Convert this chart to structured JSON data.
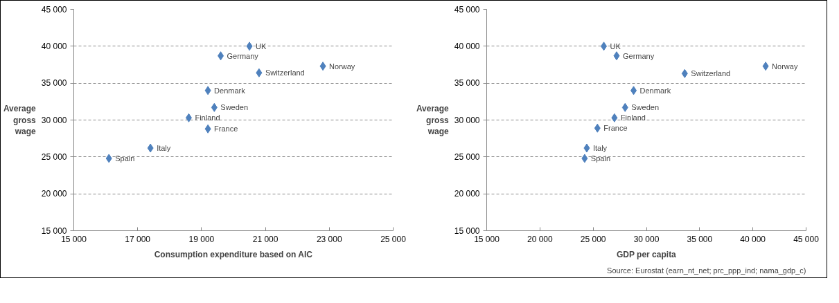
{
  "chart_data": [
    {
      "type": "scatter",
      "xlabel": "Consumption expenditure based on AIC",
      "ylabel": "Average gross wage",
      "marker": "diamond",
      "grid": "y",
      "xlim": [
        15000,
        25000
      ],
      "xticks": [
        {
          "value": 15000,
          "label": "15 000"
        },
        {
          "value": 17000,
          "label": "17 000"
        },
        {
          "value": 19000,
          "label": "19 000"
        },
        {
          "value": 21000,
          "label": "21 000"
        },
        {
          "value": 23000,
          "label": "23 000"
        },
        {
          "value": 25000,
          "label": "25 000"
        }
      ],
      "ylim": [
        15000,
        45000
      ],
      "yticks": [
        {
          "value": 15000,
          "label": "15 000"
        },
        {
          "value": 20000,
          "label": "20 000"
        },
        {
          "value": 25000,
          "label": "25 000"
        },
        {
          "value": 30000,
          "label": "30 000"
        },
        {
          "value": 35000,
          "label": "35 000"
        },
        {
          "value": 40000,
          "label": "40 000"
        },
        {
          "value": 45000,
          "label": "45 000"
        }
      ],
      "series": [
        {
          "color": "#4f81bd",
          "x": [
            16100,
            17400,
            18600,
            19200,
            19200,
            19400,
            19600,
            20500,
            20800,
            22800
          ],
          "values": [
            24800,
            26200,
            30300,
            28800,
            34000,
            31700,
            38700,
            40000,
            36400,
            37300
          ]
        }
      ],
      "annotations": [
        {
          "text": "Spain",
          "x": 16100,
          "y": 24800
        },
        {
          "text": "Italy",
          "x": 17400,
          "y": 26200
        },
        {
          "text": "Finland",
          "x": 18600,
          "y": 30300
        },
        {
          "text": "France",
          "x": 19200,
          "y": 28800
        },
        {
          "text": "Denmark",
          "x": 19200,
          "y": 34000
        },
        {
          "text": "Sweden",
          "x": 19400,
          "y": 31700
        },
        {
          "text": "Germany",
          "x": 19600,
          "y": 38700
        },
        {
          "text": "UK",
          "x": 20500,
          "y": 40000
        },
        {
          "text": "Switzerland",
          "x": 20800,
          "y": 36400
        },
        {
          "text": "Norway",
          "x": 22800,
          "y": 37300
        }
      ]
    },
    {
      "type": "scatter",
      "xlabel": "GDP per capita",
      "ylabel": "Average gross wage",
      "marker": "diamond",
      "grid": "y",
      "xlim": [
        15000,
        45000
      ],
      "xticks": [
        {
          "value": 15000,
          "label": "15 000"
        },
        {
          "value": 20000,
          "label": "20 000"
        },
        {
          "value": 25000,
          "label": "25 000"
        },
        {
          "value": 30000,
          "label": "30 000"
        },
        {
          "value": 35000,
          "label": "35 000"
        },
        {
          "value": 40000,
          "label": "40 000"
        },
        {
          "value": 45000,
          "label": "45 000"
        }
      ],
      "ylim": [
        15000,
        45000
      ],
      "yticks": [
        {
          "value": 15000,
          "label": "15 000"
        },
        {
          "value": 20000,
          "label": "20 000"
        },
        {
          "value": 25000,
          "label": "25 000"
        },
        {
          "value": 30000,
          "label": "30 000"
        },
        {
          "value": 35000,
          "label": "35 000"
        },
        {
          "value": 40000,
          "label": "40 000"
        },
        {
          "value": 45000,
          "label": "45 000"
        }
      ],
      "series": [
        {
          "color": "#4f81bd",
          "x": [
            24200,
            24400,
            27000,
            25400,
            28800,
            28000,
            27200,
            26000,
            33600,
            41200
          ],
          "values": [
            24800,
            26200,
            30300,
            28900,
            34000,
            31700,
            38700,
            40000,
            36300,
            37300
          ]
        }
      ],
      "annotations": [
        {
          "text": "Spain",
          "x": 24200,
          "y": 24800
        },
        {
          "text": "Italy",
          "x": 24400,
          "y": 26200
        },
        {
          "text": "Finland",
          "x": 27000,
          "y": 30300
        },
        {
          "text": "France",
          "x": 25400,
          "y": 28900
        },
        {
          "text": "Denmark",
          "x": 28800,
          "y": 34000
        },
        {
          "text": "Sweden",
          "x": 28000,
          "y": 31700
        },
        {
          "text": "Germany",
          "x": 27200,
          "y": 38700
        },
        {
          "text": "UK",
          "x": 26000,
          "y": 40000
        },
        {
          "text": "Switzerland",
          "x": 33600,
          "y": 36300
        },
        {
          "text": "Norway",
          "x": 41200,
          "y": 37300
        },
        "Source: Eurostat (earn_nt_net; prc_ppp_ind; nama_gdp_c)"
      ]
    }
  ]
}
